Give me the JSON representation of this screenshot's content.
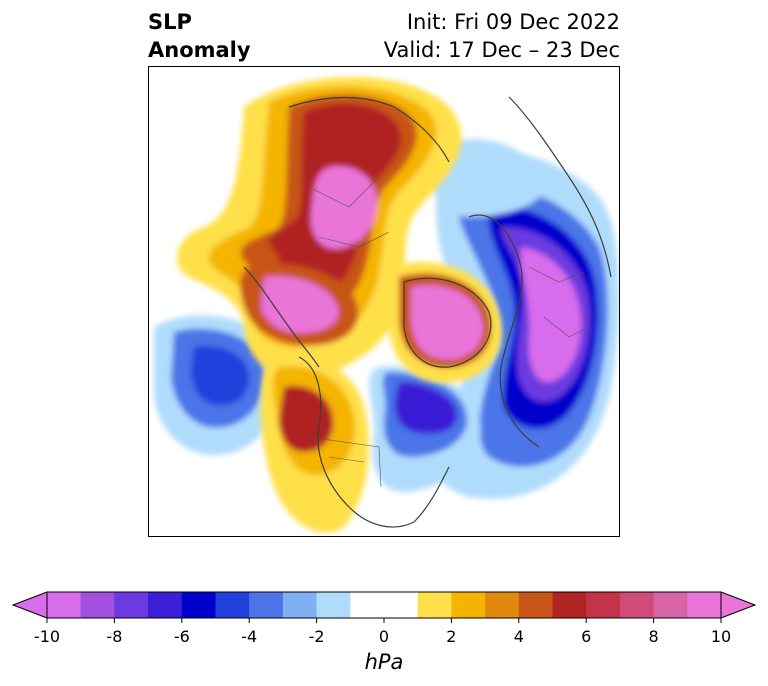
{
  "title": {
    "left_line1": "SLP",
    "left_line2": "Anomaly",
    "right_line1": "Init: Fri 09 Dec 2022",
    "right_line2": "Valid: 17 Dec – 23 Dec"
  },
  "colorbar": {
    "unit": "hPa",
    "ticks": [
      "-10",
      "-8",
      "-6",
      "-4",
      "-2",
      "0",
      "2",
      "4",
      "6",
      "8",
      "10"
    ],
    "min_color": "#d76cec",
    "max_color": "#ea74d8",
    "colors": [
      "#d76cec",
      "#a24fe0",
      "#6b3ae0",
      "#3a1fd6",
      "#0000cc",
      "#2440dc",
      "#4c74e8",
      "#7eb0f2",
      "#b0dcfc",
      "#ffffff",
      "#ffffff",
      "#ffe04a",
      "#f4b400",
      "#e08810",
      "#c85418",
      "#b02424",
      "#c43448",
      "#d04c78",
      "#d864a8",
      "#ea74d8"
    ]
  },
  "map": {
    "anomaly_colors": {
      "neg_strong": "#6b3ae0",
      "neg_mid": "#0000cc",
      "neg_light": "#4c74e8",
      "neg_faint": "#b0dcfc",
      "pos_faint": "#ffe04a",
      "pos_light": "#f4b400",
      "pos_mid": "#c85418",
      "pos_strong": "#b02424",
      "pos_peak": "#ea74d8"
    }
  }
}
